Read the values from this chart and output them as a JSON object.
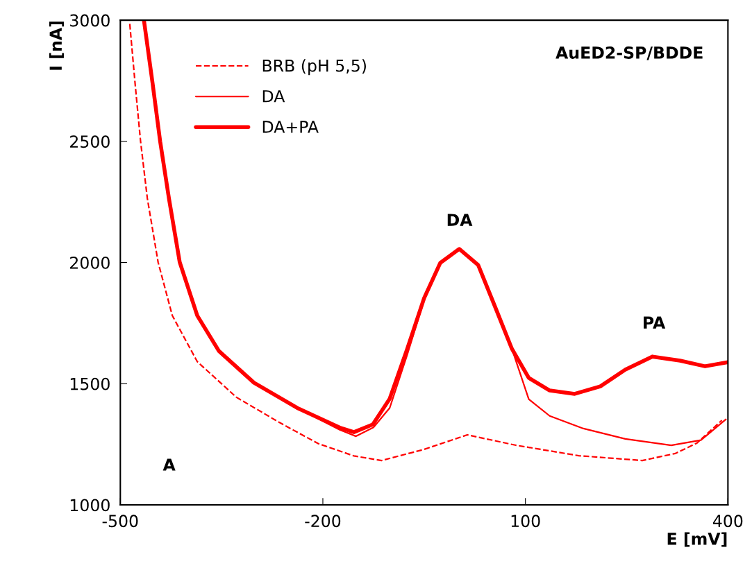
{
  "chart_data": {
    "type": "line",
    "xlabel": "E [mV]",
    "ylabel": "I [nA]",
    "xlim": [
      -500,
      400
    ],
    "xticks": [
      -500,
      -200,
      100,
      400
    ],
    "ylim": [
      1000,
      3000
    ],
    "yticks": [
      1000,
      1500,
      2000,
      2500,
      3000
    ],
    "grid": false,
    "legend": "top left",
    "marker": "none",
    "annotations": [
      "AuED2-SP/BDDE",
      "A",
      "DA",
      "PA"
    ],
    "series": [
      {
        "name": "BRB (pH 5,5)",
        "color": "#ff0000",
        "line_style": "dashed",
        "x": [
          -486,
          -478,
          -470,
          -460,
          -444,
          -423,
          -386,
          -328,
          -265,
          -207,
          -154,
          -113,
          -50,
          14,
          86,
          179,
          273,
          322,
          354,
          391
        ],
        "values": [
          2985,
          2735,
          2500,
          2265,
          2001,
          1781,
          1591,
          1444,
          1341,
          1253,
          1202,
          1183,
          1229,
          1289,
          1246,
          1203,
          1183,
          1212,
          1255,
          1349
        ]
      },
      {
        "name": "DA",
        "color": "#ff0000",
        "line_style": "solid",
        "x": [
          -465,
          -452,
          -441,
          -428,
          -412,
          -386,
          -354,
          -302,
          -238,
          -175,
          -151,
          -125,
          -101,
          -75,
          -50,
          -26,
          2,
          30,
          55,
          80,
          105,
          136,
          186,
          248,
          316,
          360,
          397
        ],
        "values": [
          2999,
          2735,
          2500,
          2265,
          2001,
          1781,
          1635,
          1504,
          1400,
          1310,
          1283,
          1320,
          1400,
          1620,
          1845,
          1999,
          2056,
          1990,
          1818,
          1644,
          1436,
          1367,
          1315,
          1272,
          1246,
          1267,
          1353
        ]
      },
      {
        "name": "DA+PA",
        "color": "#ff0000",
        "line_style": "solid",
        "x": [
          -465,
          -452,
          -441,
          -428,
          -412,
          -386,
          -354,
          -302,
          -238,
          -175,
          -154,
          -126,
          -101,
          -75,
          -50,
          -26,
          2,
          30,
          55,
          80,
          105,
          136,
          173,
          211,
          248,
          288,
          329,
          366,
          400
        ],
        "values": [
          2999,
          2735,
          2500,
          2265,
          2001,
          1781,
          1635,
          1504,
          1400,
          1319,
          1300,
          1332,
          1438,
          1644,
          1853,
          1999,
          2056,
          1990,
          1818,
          1644,
          1524,
          1472,
          1458,
          1489,
          1558,
          1612,
          1595,
          1572,
          1589
        ]
      }
    ]
  }
}
